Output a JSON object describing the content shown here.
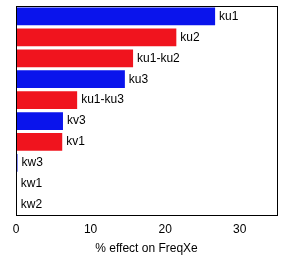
{
  "chart_data": {
    "type": "bar",
    "orientation": "horizontal",
    "x_label": "% effect on FreqXe",
    "categories": [
      "ku1",
      "ku2",
      "ku1-ku2",
      "ku3",
      "ku1-ku3",
      "kv3",
      "kv1",
      "kw3",
      "kw1",
      "kw2"
    ],
    "values": [
      26.7,
      21.5,
      15.7,
      14.6,
      8.2,
      6.3,
      6.2,
      0.2,
      0.1,
      0.1
    ],
    "colors": [
      "#0a14ec",
      "#f0141e",
      "#f0141e",
      "#0a14ec",
      "#f0141e",
      "#0a14ec",
      "#f0141e",
      "#0a14ec",
      "#0a14ec",
      "#f0141e"
    ],
    "xlim": [
      0,
      35
    ],
    "xticks": [
      0,
      10,
      20,
      30
    ],
    "grid": false,
    "tick_labels": "x"
  }
}
